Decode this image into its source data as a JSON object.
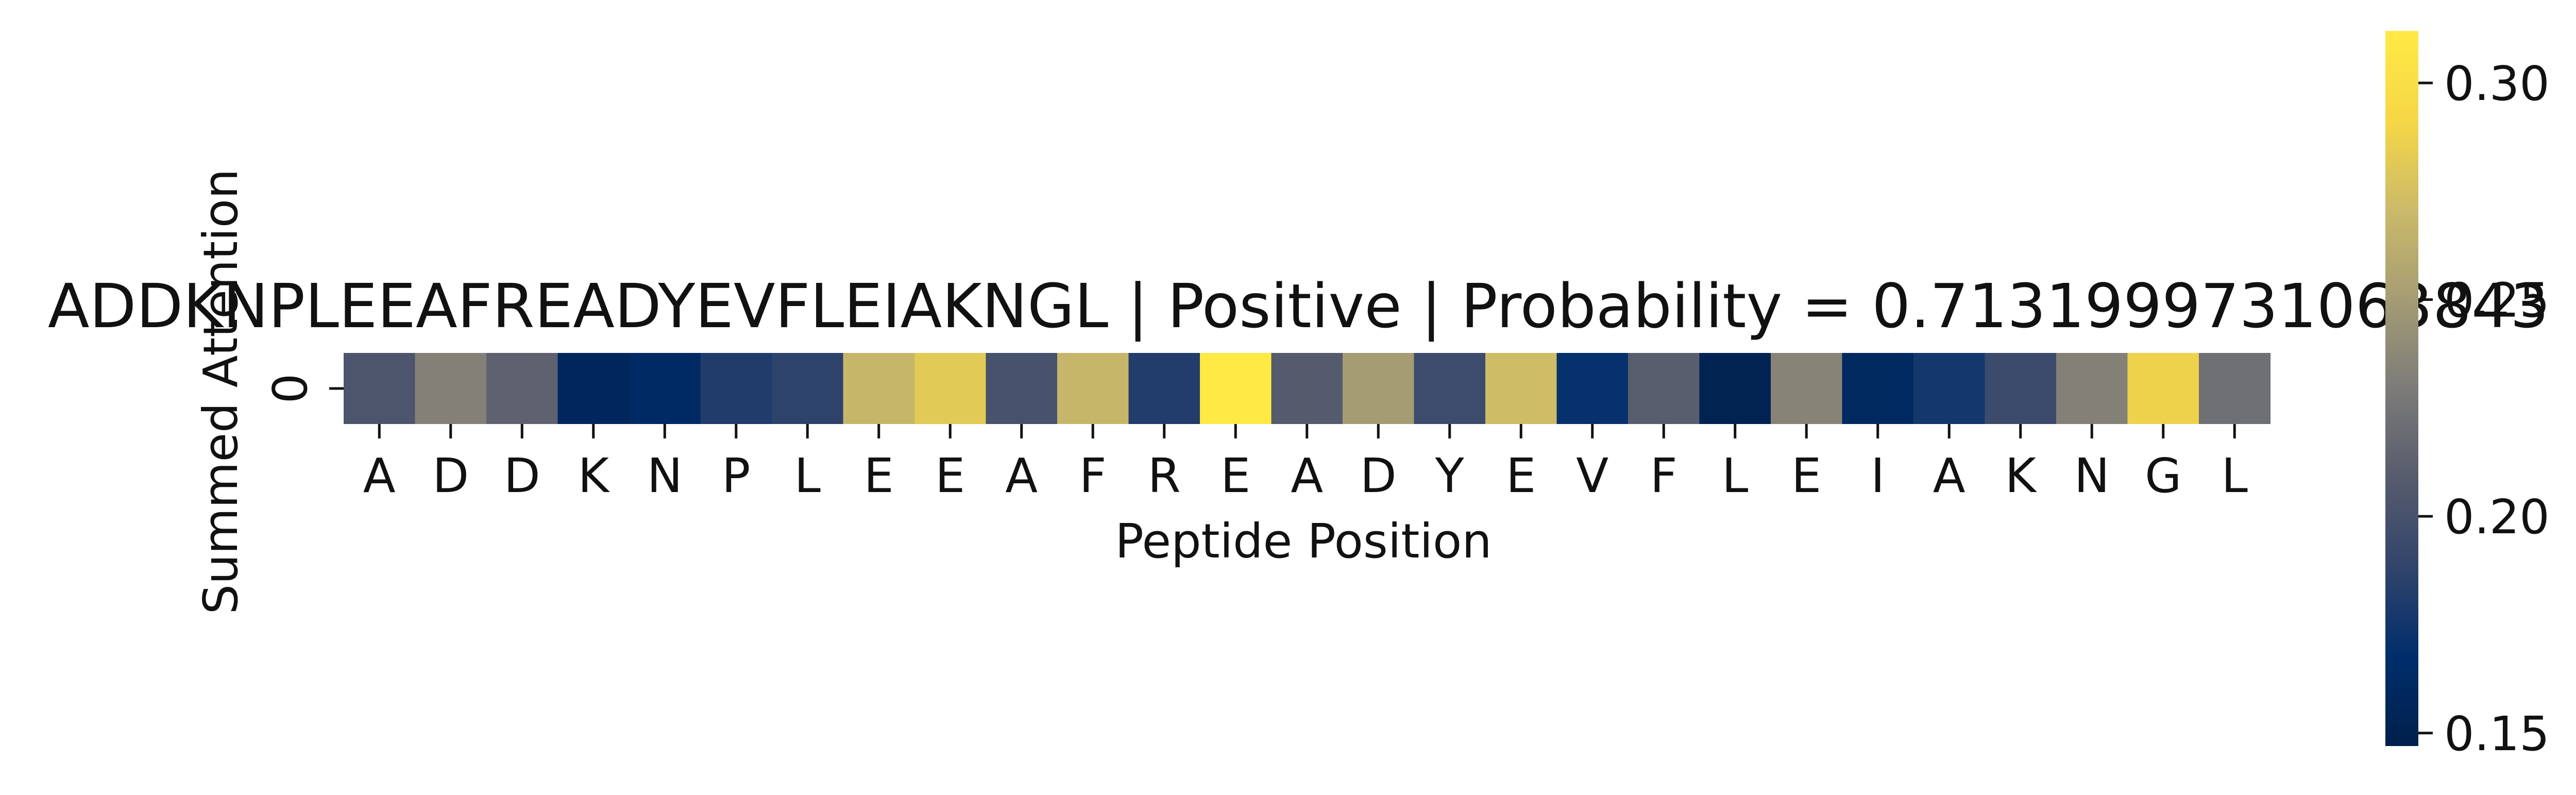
{
  "chart_data": {
    "type": "heatmap",
    "title": "ADDKNPLEEAFREADYEVFLEIAKNGL | Positive | Probability = 0.7131999731063843",
    "xlabel": "Peptide Position",
    "ylabel": "Summed Attention",
    "x_tick_labels": [
      "A",
      "D",
      "D",
      "K",
      "N",
      "P",
      "L",
      "E",
      "E",
      "A",
      "F",
      "R",
      "E",
      "A",
      "D",
      "Y",
      "E",
      "V",
      "F",
      "L",
      "E",
      "I",
      "A",
      "K",
      "N",
      "G",
      "L"
    ],
    "y_tick_labels": [
      "0"
    ],
    "values": [
      [
        0.203,
        0.233,
        0.213,
        0.158,
        0.162,
        0.181,
        0.187,
        0.268,
        0.282,
        0.2,
        0.268,
        0.182,
        0.312,
        0.208,
        0.25,
        0.195,
        0.272,
        0.17,
        0.21,
        0.151,
        0.235,
        0.16,
        0.176,
        0.194,
        0.233,
        0.288,
        0.222
      ]
    ],
    "colormap": "cividis",
    "colormap_stops": [
      "#00204c",
      "#002e6c",
      "#31446b",
      "#575c6d",
      "#7c7b78",
      "#a59c74",
      "#cbba69",
      "#f6d746",
      "#ffe945"
    ],
    "colorbar": {
      "vmin": 0.147,
      "vmax": 0.312,
      "ticks": [
        0.15,
        0.2,
        0.25,
        0.3
      ],
      "tick_labels": [
        "0.15",
        "0.20",
        "0.25",
        "0.30"
      ]
    },
    "grid": false,
    "legend": "none"
  }
}
